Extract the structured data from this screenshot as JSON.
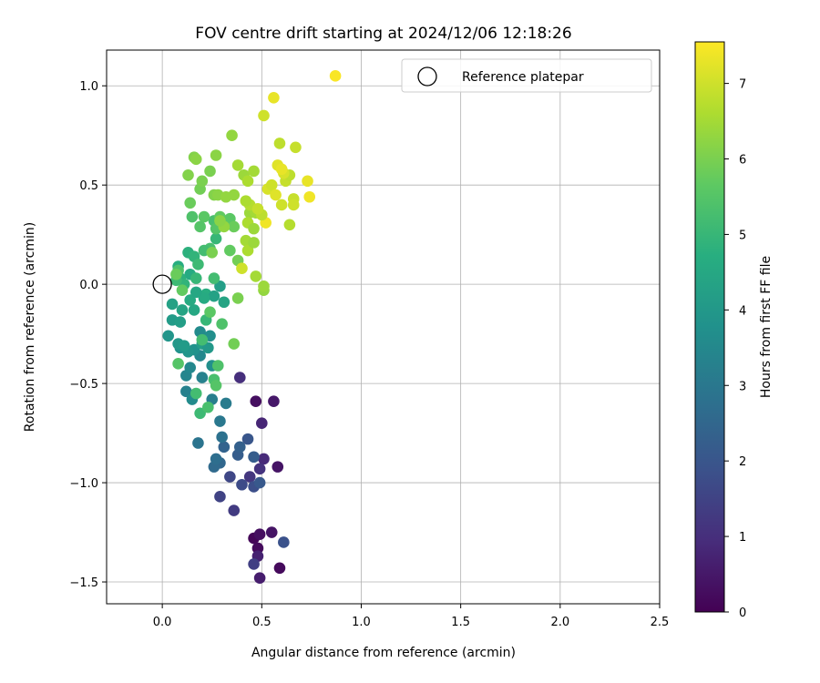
{
  "chart_data": {
    "type": "scatter",
    "title": "FOV centre drift starting at 2024/12/06 12:18:26",
    "xlabel": "Angular distance from reference (arcmin)",
    "ylabel": "Rotation from reference (arcmin)",
    "xlim": [
      -0.28,
      2.5
    ],
    "ylim": [
      -1.61,
      1.18
    ],
    "xticks": [
      0.0,
      0.5,
      1.0,
      1.5,
      2.0,
      2.5
    ],
    "yticks": [
      -1.5,
      -1.0,
      -0.5,
      0.0,
      0.5,
      1.0
    ],
    "xtick_labels": [
      "0.0",
      "0.5",
      "1.0",
      "1.5",
      "2.0",
      "2.5"
    ],
    "ytick_labels": [
      "−1.5",
      "−1.0",
      "−0.5",
      "0.0",
      "0.5",
      "1.0"
    ],
    "grid": true,
    "legend": {
      "placement": "top-right",
      "entries": [
        "Reference platepar"
      ]
    },
    "reference_point": {
      "x": 0.0,
      "y": 0.0
    },
    "colorbar": {
      "label": "Hours from first FF file",
      "range": [
        0,
        7.55
      ],
      "ticks": [
        0,
        1,
        2,
        3,
        4,
        5,
        6,
        7
      ],
      "tick_labels": [
        "0",
        "1",
        "2",
        "3",
        "4",
        "5",
        "6",
        "7"
      ],
      "colormap": "viridis"
    },
    "points": [
      {
        "x": 0.46,
        "y": -1.28,
        "h": 0.1
      },
      {
        "x": 0.48,
        "y": -1.33,
        "h": 0.2
      },
      {
        "x": 0.49,
        "y": -1.26,
        "h": 0.3
      },
      {
        "x": 0.55,
        "y": -1.25,
        "h": 0.4
      },
      {
        "x": 0.59,
        "y": -1.43,
        "h": 0.2
      },
      {
        "x": 0.49,
        "y": -1.48,
        "h": 0.6
      },
      {
        "x": 0.48,
        "y": -1.37,
        "h": 0.7
      },
      {
        "x": 0.47,
        "y": -0.59,
        "h": 0.3
      },
      {
        "x": 0.56,
        "y": -0.59,
        "h": 0.5
      },
      {
        "x": 0.5,
        "y": -0.7,
        "h": 0.8
      },
      {
        "x": 0.51,
        "y": -0.88,
        "h": 0.9
      },
      {
        "x": 0.58,
        "y": -0.92,
        "h": 0.4
      },
      {
        "x": 0.39,
        "y": -0.47,
        "h": 1.0
      },
      {
        "x": 0.49,
        "y": -0.93,
        "h": 1.1
      },
      {
        "x": 0.46,
        "y": -1.41,
        "h": 1.4
      },
      {
        "x": 0.61,
        "y": -1.3,
        "h": 1.9
      },
      {
        "x": 0.44,
        "y": -0.97,
        "h": 1.2
      },
      {
        "x": 0.34,
        "y": -0.97,
        "h": 1.6
      },
      {
        "x": 0.36,
        "y": -1.14,
        "h": 1.3
      },
      {
        "x": 0.29,
        "y": -1.07,
        "h": 1.5
      },
      {
        "x": 0.4,
        "y": -1.01,
        "h": 1.7
      },
      {
        "x": 0.46,
        "y": -1.02,
        "h": 1.8
      },
      {
        "x": 0.49,
        "y": -1.0,
        "h": 2.1
      },
      {
        "x": 0.43,
        "y": -0.78,
        "h": 2.0
      },
      {
        "x": 0.38,
        "y": -0.86,
        "h": 2.2
      },
      {
        "x": 0.39,
        "y": -0.82,
        "h": 2.3
      },
      {
        "x": 0.31,
        "y": -0.82,
        "h": 2.4
      },
      {
        "x": 0.29,
        "y": -0.9,
        "h": 2.5
      },
      {
        "x": 0.26,
        "y": -0.92,
        "h": 2.6
      },
      {
        "x": 0.27,
        "y": -0.88,
        "h": 2.7
      },
      {
        "x": 0.3,
        "y": -0.77,
        "h": 2.8
      },
      {
        "x": 0.29,
        "y": -0.69,
        "h": 3.0
      },
      {
        "x": 0.18,
        "y": -0.8,
        "h": 2.9
      },
      {
        "x": 0.46,
        "y": -0.87,
        "h": 2.2
      },
      {
        "x": 0.32,
        "y": -0.6,
        "h": 3.1
      },
      {
        "x": 0.25,
        "y": -0.58,
        "h": 3.2
      },
      {
        "x": 0.2,
        "y": -0.47,
        "h": 3.3
      },
      {
        "x": 0.12,
        "y": -0.46,
        "h": 3.4
      },
      {
        "x": 0.14,
        "y": -0.42,
        "h": 3.5
      },
      {
        "x": 0.12,
        "y": -0.54,
        "h": 3.3
      },
      {
        "x": 0.15,
        "y": -0.58,
        "h": 3.6
      },
      {
        "x": 0.25,
        "y": -0.41,
        "h": 3.7
      },
      {
        "x": 0.19,
        "y": -0.36,
        "h": 3.5
      },
      {
        "x": 0.16,
        "y": -0.33,
        "h": 3.8
      },
      {
        "x": 0.13,
        "y": -0.34,
        "h": 3.9
      },
      {
        "x": 0.19,
        "y": -0.24,
        "h": 3.6
      },
      {
        "x": 0.24,
        "y": -0.26,
        "h": 3.7
      },
      {
        "x": 0.09,
        "y": -0.32,
        "h": 3.8
      },
      {
        "x": 0.08,
        "y": -0.3,
        "h": 4.0
      },
      {
        "x": 0.03,
        "y": -0.26,
        "h": 3.9
      },
      {
        "x": 0.11,
        "y": -0.31,
        "h": 4.1
      },
      {
        "x": 0.2,
        "y": -0.3,
        "h": 4.2
      },
      {
        "x": 0.23,
        "y": -0.32,
        "h": 4.0
      },
      {
        "x": 0.05,
        "y": -0.18,
        "h": 4.1
      },
      {
        "x": 0.09,
        "y": -0.19,
        "h": 4.2
      },
      {
        "x": 0.05,
        "y": -0.1,
        "h": 4.3
      },
      {
        "x": 0.1,
        "y": -0.13,
        "h": 4.4
      },
      {
        "x": 0.16,
        "y": -0.13,
        "h": 4.5
      },
      {
        "x": 0.14,
        "y": -0.08,
        "h": 4.6
      },
      {
        "x": 0.22,
        "y": -0.05,
        "h": 4.7
      },
      {
        "x": 0.26,
        "y": -0.06,
        "h": 4.3
      },
      {
        "x": 0.29,
        "y": -0.01,
        "h": 4.2
      },
      {
        "x": 0.31,
        "y": -0.09,
        "h": 4.4
      },
      {
        "x": 0.21,
        "y": -0.07,
        "h": 4.6
      },
      {
        "x": 0.17,
        "y": -0.04,
        "h": 4.5
      },
      {
        "x": 0.13,
        "y": 0.16,
        "h": 4.8
      },
      {
        "x": 0.16,
        "y": 0.14,
        "h": 4.9
      },
      {
        "x": 0.08,
        "y": 0.09,
        "h": 4.7
      },
      {
        "x": 0.14,
        "y": 0.05,
        "h": 4.6
      },
      {
        "x": 0.09,
        "y": 0.03,
        "h": 4.8
      },
      {
        "x": 0.11,
        "y": 0.0,
        "h": 4.9
      },
      {
        "x": 0.17,
        "y": 0.03,
        "h": 5.0
      },
      {
        "x": 0.18,
        "y": 0.1,
        "h": 5.1
      },
      {
        "x": 0.26,
        "y": 0.03,
        "h": 5.2
      },
      {
        "x": 0.24,
        "y": 0.18,
        "h": 5.3
      },
      {
        "x": 0.27,
        "y": 0.23,
        "h": 5.0
      },
      {
        "x": 0.21,
        "y": 0.17,
        "h": 5.2
      },
      {
        "x": 0.08,
        "y": 0.07,
        "h": 5.4
      },
      {
        "x": 0.07,
        "y": 0.02,
        "h": 5.1
      },
      {
        "x": 0.26,
        "y": 0.32,
        "h": 5.3
      },
      {
        "x": 0.27,
        "y": 0.28,
        "h": 5.5
      },
      {
        "x": 0.15,
        "y": 0.34,
        "h": 5.4
      },
      {
        "x": 0.21,
        "y": 0.34,
        "h": 5.6
      },
      {
        "x": 0.19,
        "y": 0.29,
        "h": 5.5
      },
      {
        "x": 0.29,
        "y": 0.34,
        "h": 5.7
      },
      {
        "x": 0.34,
        "y": 0.33,
        "h": 5.6
      },
      {
        "x": 0.36,
        "y": 0.29,
        "h": 5.8
      },
      {
        "x": 0.34,
        "y": 0.17,
        "h": 5.7
      },
      {
        "x": 0.38,
        "y": 0.12,
        "h": 5.9
      },
      {
        "x": 0.22,
        "y": -0.18,
        "h": 5.0
      },
      {
        "x": 0.2,
        "y": -0.28,
        "h": 5.2
      },
      {
        "x": 0.26,
        "y": -0.48,
        "h": 5.3
      },
      {
        "x": 0.28,
        "y": -0.41,
        "h": 5.4
      },
      {
        "x": 0.17,
        "y": -0.55,
        "h": 5.2
      },
      {
        "x": 0.19,
        "y": -0.65,
        "h": 5.1
      },
      {
        "x": 0.23,
        "y": -0.62,
        "h": 5.3
      },
      {
        "x": 0.27,
        "y": -0.51,
        "h": 5.5
      },
      {
        "x": 0.3,
        "y": -0.2,
        "h": 5.4
      },
      {
        "x": 0.24,
        "y": -0.14,
        "h": 5.6
      },
      {
        "x": 0.08,
        "y": -0.4,
        "h": 5.5
      },
      {
        "x": 0.1,
        "y": -0.03,
        "h": 5.7
      },
      {
        "x": 0.07,
        "y": 0.05,
        "h": 5.8
      },
      {
        "x": 0.36,
        "y": -0.3,
        "h": 5.9
      },
      {
        "x": 0.38,
        "y": -0.07,
        "h": 6.0
      },
      {
        "x": 0.25,
        "y": 0.16,
        "h": 6.0
      },
      {
        "x": 0.14,
        "y": 0.41,
        "h": 5.8
      },
      {
        "x": 0.19,
        "y": 0.48,
        "h": 5.9
      },
      {
        "x": 0.2,
        "y": 0.52,
        "h": 6.0
      },
      {
        "x": 0.13,
        "y": 0.55,
        "h": 6.1
      },
      {
        "x": 0.24,
        "y": 0.57,
        "h": 6.0
      },
      {
        "x": 0.16,
        "y": 0.64,
        "h": 6.1
      },
      {
        "x": 0.17,
        "y": 0.63,
        "h": 6.2
      },
      {
        "x": 0.27,
        "y": 0.65,
        "h": 6.2
      },
      {
        "x": 0.26,
        "y": 0.45,
        "h": 6.1
      },
      {
        "x": 0.28,
        "y": 0.45,
        "h": 6.2
      },
      {
        "x": 0.36,
        "y": 0.45,
        "h": 6.3
      },
      {
        "x": 0.32,
        "y": 0.44,
        "h": 6.3
      },
      {
        "x": 0.35,
        "y": 0.75,
        "h": 6.3
      },
      {
        "x": 0.38,
        "y": 0.6,
        "h": 6.5
      },
      {
        "x": 0.41,
        "y": 0.55,
        "h": 6.4
      },
      {
        "x": 0.43,
        "y": 0.52,
        "h": 6.6
      },
      {
        "x": 0.46,
        "y": 0.57,
        "h": 6.5
      },
      {
        "x": 0.44,
        "y": 0.36,
        "h": 6.4
      },
      {
        "x": 0.43,
        "y": 0.31,
        "h": 6.6
      },
      {
        "x": 0.47,
        "y": 0.36,
        "h": 6.5
      },
      {
        "x": 0.44,
        "y": 0.4,
        "h": 6.7
      },
      {
        "x": 0.42,
        "y": 0.42,
        "h": 6.6
      },
      {
        "x": 0.46,
        "y": 0.28,
        "h": 6.4
      },
      {
        "x": 0.42,
        "y": 0.22,
        "h": 6.5
      },
      {
        "x": 0.43,
        "y": 0.17,
        "h": 6.6
      },
      {
        "x": 0.46,
        "y": 0.21,
        "h": 6.4
      },
      {
        "x": 0.47,
        "y": 0.04,
        "h": 6.5
      },
      {
        "x": 0.51,
        "y": -0.03,
        "h": 6.3
      },
      {
        "x": 0.51,
        "y": -0.01,
        "h": 6.4
      },
      {
        "x": 0.4,
        "y": 0.08,
        "h": 7.0
      },
      {
        "x": 0.31,
        "y": 0.29,
        "h": 6.3
      },
      {
        "x": 0.29,
        "y": 0.32,
        "h": 6.2
      },
      {
        "x": 0.51,
        "y": 0.85,
        "h": 7.0
      },
      {
        "x": 0.56,
        "y": 0.94,
        "h": 7.3
      },
      {
        "x": 0.58,
        "y": 0.6,
        "h": 7.2
      },
      {
        "x": 0.59,
        "y": 0.71,
        "h": 6.8
      },
      {
        "x": 0.67,
        "y": 0.69,
        "h": 6.9
      },
      {
        "x": 0.53,
        "y": 0.48,
        "h": 7.1
      },
      {
        "x": 0.55,
        "y": 0.5,
        "h": 7.0
      },
      {
        "x": 0.57,
        "y": 0.45,
        "h": 7.2
      },
      {
        "x": 0.6,
        "y": 0.4,
        "h": 7.0
      },
      {
        "x": 0.62,
        "y": 0.52,
        "h": 6.9
      },
      {
        "x": 0.64,
        "y": 0.55,
        "h": 6.8
      },
      {
        "x": 0.66,
        "y": 0.43,
        "h": 6.9
      },
      {
        "x": 0.66,
        "y": 0.4,
        "h": 7.0
      },
      {
        "x": 0.64,
        "y": 0.3,
        "h": 6.7
      },
      {
        "x": 0.61,
        "y": 0.56,
        "h": 7.1
      },
      {
        "x": 0.6,
        "y": 0.58,
        "h": 7.3
      },
      {
        "x": 0.52,
        "y": 0.31,
        "h": 7.4
      },
      {
        "x": 0.73,
        "y": 0.52,
        "h": 7.3
      },
      {
        "x": 0.74,
        "y": 0.44,
        "h": 7.4
      },
      {
        "x": 0.87,
        "y": 1.05,
        "h": 7.5
      },
      {
        "x": 0.5,
        "y": 0.35,
        "h": 6.8
      },
      {
        "x": 0.48,
        "y": 0.38,
        "h": 6.9
      }
    ]
  }
}
